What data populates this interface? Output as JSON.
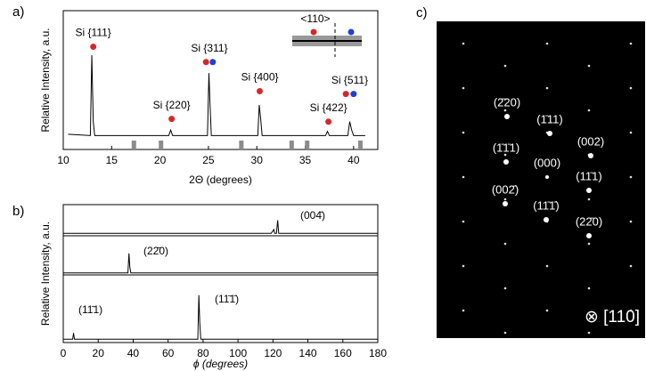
{
  "panel_labels": [
    "a)",
    "b)",
    "c)"
  ],
  "chart_data": [
    {
      "type": "line",
      "xlabel": "2Θ (degrees)",
      "ylabel": "Relative Intensity, a.u.",
      "x": [
        10.5,
        12.8,
        12.95,
        13.1,
        13.25,
        20.9,
        21.1,
        21.3,
        24.9,
        25.05,
        25.15,
        25.3,
        30.1,
        30.25,
        30.4,
        30.55,
        37.1,
        37.3,
        37.5,
        39.4,
        39.6,
        39.8,
        40.0,
        41.2
      ],
      "values": [
        11,
        10,
        68,
        20,
        10,
        10,
        14,
        10,
        10,
        55,
        35,
        10,
        10,
        32,
        22,
        10,
        10,
        13,
        10,
        10,
        20,
        14,
        10,
        10
      ],
      "color": "#000000",
      "xlim": [
        10,
        42.5
      ],
      "xticks": [
        10,
        15,
        20,
        25,
        30,
        35,
        40
      ],
      "ylim": [
        0,
        100
      ],
      "annotations": [
        {
          "text": "Si {111}",
          "dots": [
            {
              "x": 13.1,
              "y": 74,
              "color": "#d62728"
            }
          ]
        },
        {
          "text": "Si {220}",
          "dots": [
            {
              "x": 21.2,
              "y": 22,
              "color": "#d62728"
            }
          ]
        },
        {
          "text": "Si {311}",
          "dots": [
            {
              "x": 24.75,
              "y": 63,
              "color": "#d62728"
            },
            {
              "x": 25.45,
              "y": 63,
              "color": "#1f3fd6"
            }
          ]
        },
        {
          "text": "Si {400}",
          "dots": [
            {
              "x": 30.3,
              "y": 42,
              "color": "#d62728"
            }
          ]
        },
        {
          "text": "Si {422}",
          "dots": [
            {
              "x": 37.4,
              "y": 20,
              "color": "#d62728"
            }
          ]
        },
        {
          "text": "Si {511}",
          "dots": [
            {
              "x": 39.2,
              "y": 40,
              "color": "#d62728"
            },
            {
              "x": 40.0,
              "y": 40,
              "color": "#1f3fd6"
            }
          ]
        }
      ],
      "reference_positions": [
        17.3,
        20.1,
        28.4,
        33.6,
        35.2,
        40.7
      ],
      "reference_color": "#8c8c8c",
      "inset_label": "<110>"
    },
    {
      "type": "line",
      "xlabel": "ϕ (degrees)",
      "ylabel": "Relative Intensity, a.u.",
      "xlim": [
        0,
        180
      ],
      "xticks": [
        0,
        20,
        40,
        60,
        80,
        100,
        120,
        140,
        160,
        180
      ],
      "ylim": [
        0,
        100
      ],
      "series": [
        {
          "color": "#000000",
          "x": [
            0,
            119,
            120.5,
            121,
            121.5,
            122,
            122.7,
            123.3,
            125,
            180
          ],
          "values": [
            8,
            8,
            20,
            8,
            8,
            8,
            50,
            8,
            8,
            8
          ],
          "annotations": [
            "(004̄)"
          ]
        },
        {
          "color": "#000000",
          "x": [
            0,
            37,
            37.6,
            38.1,
            38.7,
            180
          ],
          "values": [
            5,
            5,
            55,
            20,
            5,
            5
          ],
          "annotations": [
            "(22̄0)"
          ]
        },
        {
          "color": "#000000",
          "x": [
            0,
            5.4,
            5.9,
            6.4,
            77,
            77.6,
            78.1,
            78.7,
            180
          ],
          "values": [
            5,
            5,
            14,
            5,
            5,
            70,
            30,
            5,
            5
          ],
          "annotations": [
            "(11̄1)",
            "(11̄1̄)"
          ]
        }
      ]
    }
  ],
  "diffraction": {
    "spots": [
      "(2̄20)",
      "(1̄11)",
      "(002)",
      "(1̄1̄1)",
      "(000)",
      "(11̄1)",
      "(002̄)",
      "(11̄1̄)",
      "(22̄0)"
    ],
    "zone_axis": "⊗ [110]"
  }
}
